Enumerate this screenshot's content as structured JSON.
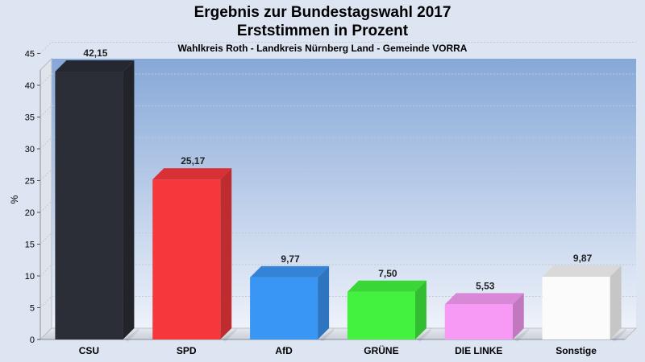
{
  "chart_data": {
    "type": "bar",
    "title": "Ergebnis zur Bundestagswahl 2017",
    "title_line2": "Erststimmen in Prozent",
    "subtitle": "Wahlkreis Roth - Landkreis Nürnberg Land - Gemeinde VORRA",
    "ylabel": "%",
    "ylim": [
      0,
      45
    ],
    "yticks": [
      0,
      5,
      10,
      15,
      20,
      25,
      30,
      35,
      40,
      45
    ],
    "grid": true,
    "categories": [
      "CSU",
      "SPD",
      "AfD",
      "GRÜNE",
      "DIE LINKE",
      "Sonstige"
    ],
    "values": [
      42.15,
      25.17,
      9.77,
      7.5,
      5.53,
      9.87
    ],
    "value_labels": [
      "42,15",
      "25,17",
      "9,77",
      "7,50",
      "5,53",
      "9,87"
    ],
    "colors": [
      "#2b2e36",
      "#f5383c",
      "#3a96f4",
      "#42f23e",
      "#f79af5",
      "#fbfbfb"
    ]
  }
}
